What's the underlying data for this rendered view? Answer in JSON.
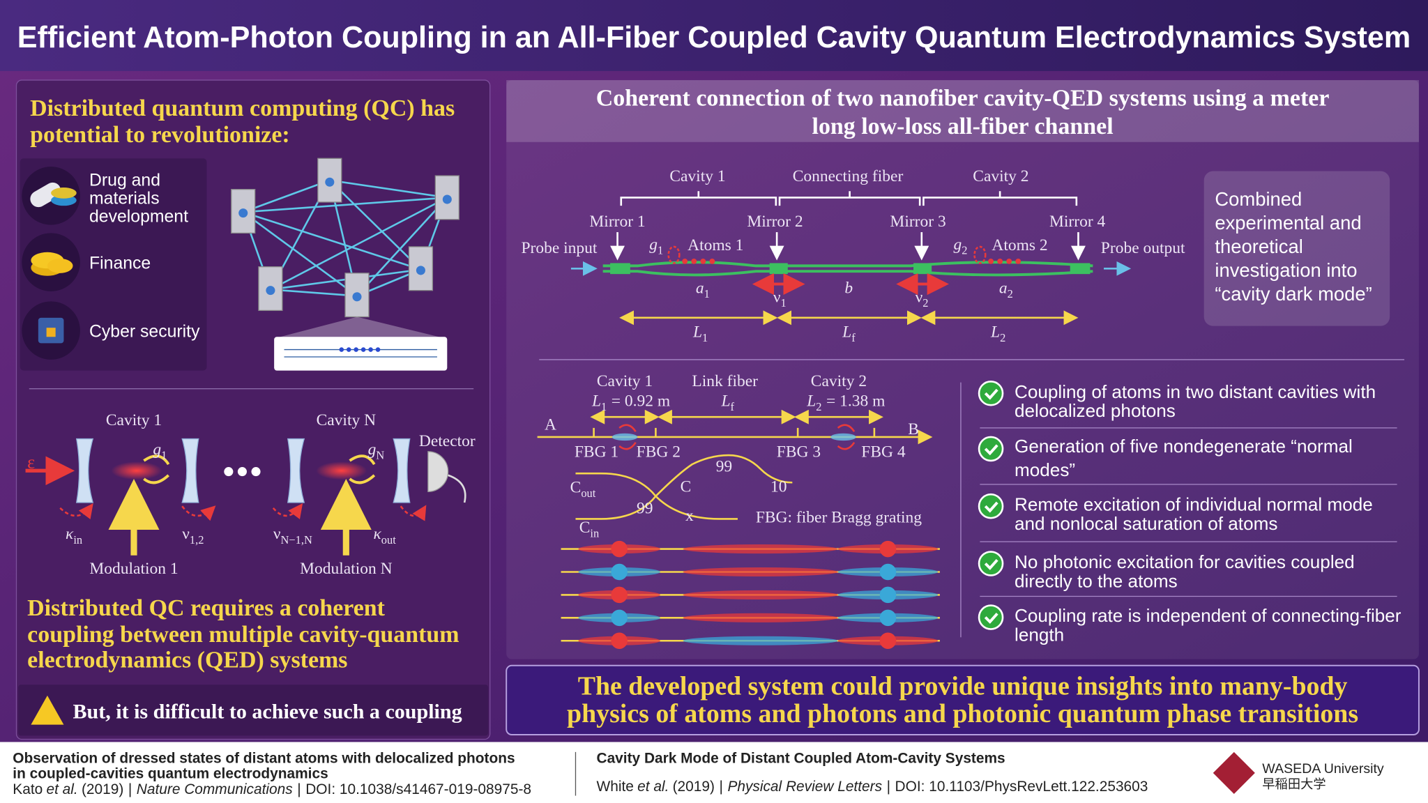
{
  "header": {
    "title": "Efficient Atom-Photon Coupling in an All-Fiber Coupled Cavity Quantum Electrodynamics System"
  },
  "left": {
    "heading": [
      "Distributed quantum computing (QC) has",
      "potential to revolutionize:"
    ],
    "applications": [
      [
        "Drug and",
        "materials",
        "development"
      ],
      [
        "Finance"
      ],
      [
        "Cyber security"
      ]
    ],
    "diagram": {
      "cavity1": "Cavity 1",
      "cavityN": "Cavity N",
      "detector": "Detector",
      "epsilon": "ε",
      "g1": {
        "base": "g",
        "sub": "1"
      },
      "gN": {
        "base": "g",
        "sub": "N"
      },
      "kin": {
        "base": "κ",
        "sub": "in"
      },
      "nu12": {
        "base": "ν",
        "sub": "1,2"
      },
      "nuN": {
        "base": "ν",
        "sub": "N−1,N"
      },
      "kout": {
        "base": "κ",
        "sub": "out"
      },
      "mod1": "Modulation 1",
      "modN": "Modulation N"
    },
    "requirement": [
      "Distributed QC requires a coherent",
      "coupling between multiple cavity-quantum",
      "electrodynamics (QED) systems"
    ],
    "warning": "But, it is difficult to achieve such a coupling"
  },
  "right": {
    "heading": [
      "Coherent connection of two nanofiber cavity-QED systems using a meter",
      "long low-loss all-fiber channel"
    ],
    "schematic": {
      "cavity1": "Cavity 1",
      "connecting": "Connecting fiber",
      "cavity2": "Cavity 2",
      "mirror1": "Mirror 1",
      "mirror2": "Mirror 2",
      "mirror3": "Mirror 3",
      "mirror4": "Mirror 4",
      "probeInput": "Probe input",
      "probeOutput": "Probe output",
      "g1": {
        "base": "g",
        "sub": "1"
      },
      "atoms1": "Atoms 1",
      "g2": {
        "base": "g",
        "sub": "2"
      },
      "atoms2": "Atoms 2",
      "a1": {
        "base": "a",
        "sub": "1"
      },
      "nu1": {
        "base": "ν",
        "sub": "1"
      },
      "b": "b",
      "nu2": {
        "base": "ν",
        "sub": "2"
      },
      "a2": {
        "base": "a",
        "sub": "2"
      },
      "L1": {
        "base": "L",
        "sub": "1"
      },
      "Lf": {
        "base": "L",
        "sub": "f"
      },
      "L2": {
        "base": "L",
        "sub": "2"
      }
    },
    "note": [
      "Combined",
      "experimental and",
      "theoretical",
      "investigation into",
      "“cavity dark mode”"
    ],
    "setup": {
      "cavity1": "Cavity 1",
      "L1": {
        "base": "L",
        "sub": "1",
        "value": "= 0.92 m"
      },
      "linkFiber": "Link fiber",
      "Lf": {
        "base": "L",
        "sub": "f"
      },
      "cavity2": "Cavity 2",
      "L2": {
        "base": "L",
        "sub": "2",
        "value": "= 1.38 m"
      },
      "A": "A",
      "B": "B",
      "fbg1": "FBG 1",
      "fbg2": "FBG 2",
      "fbg3": "FBG 3",
      "fbg4": "FBG 4",
      "cout": {
        "base": "C",
        "sub": "out"
      },
      "cin": {
        "base": "C",
        "sub": "in"
      },
      "C": "C",
      "x": "x",
      "p99a": "99",
      "p99b": "99",
      "p10": "10",
      "fbgNote": "FBG: fiber Bragg grating"
    },
    "findings": [
      [
        "Coupling of atoms in two distant cavities with",
        "delocalized photons"
      ],
      [
        "Generation of five nondegenerate “normal",
        "modes”"
      ],
      [
        "Remote excitation of individual normal mode",
        "and nonlocal saturation of atoms"
      ],
      [
        "No photonic excitation for cavities coupled",
        "directly to the atoms"
      ],
      [
        "Coupling rate is independent of connecting-fiber",
        "length"
      ]
    ]
  },
  "banner": [
    "The developed system could provide unique insights into many-body",
    "physics of atoms and photons and photonic quantum phase transitions"
  ],
  "footer": {
    "left": {
      "title": [
        "Observation of dressed states of distant atoms with delocalized photons",
        "in coupled-cavities quantum electrodynamics"
      ],
      "author": "Kato",
      "etal": "et al.",
      "year": "(2019)",
      "sep": "|",
      "journal": "Nature Communications",
      "doi": "DOI: 10.1038/s41467-019-08975-8"
    },
    "right": {
      "title": "Cavity Dark Mode of Distant Coupled Atom-Cavity Systems",
      "author": "White",
      "etal": "et al.",
      "year": "(2019)",
      "sep": "|",
      "journal": "Physical Review Letters",
      "doi": "DOI: 10.1103/PhysRevLett.122.253603"
    },
    "logo": {
      "name": "WASEDA University",
      "jp": "早稲田大学"
    }
  }
}
